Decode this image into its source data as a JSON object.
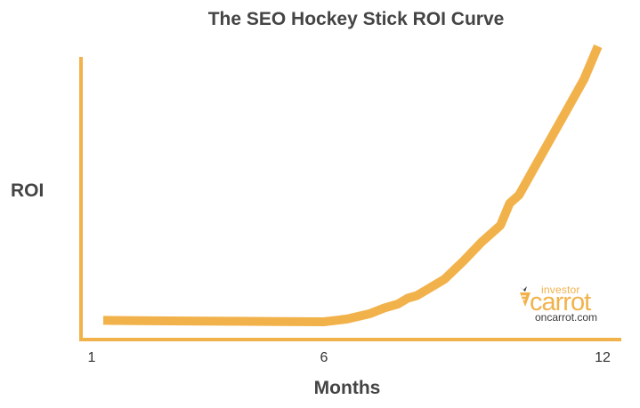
{
  "chart_data": {
    "type": "line",
    "title": "The SEO Hockey Stick ROI Curve",
    "xlabel": "Months",
    "ylabel": "ROI",
    "x_tick_labels": [
      "1",
      "6",
      "12"
    ],
    "xlim": [
      1,
      12
    ],
    "ylim": [
      0,
      100
    ],
    "grid": false,
    "line_color": "#f2b24b",
    "axis_color": "#f2b24b",
    "series": [
      {
        "x": [
          1.25,
          2,
          3,
          4,
          5,
          6,
          6.5,
          7,
          7.3,
          7.6,
          7.8,
          8,
          8.3,
          8.6,
          9,
          9.4,
          9.8,
          10,
          10.2,
          10.5,
          10.8,
          11.2,
          11.6,
          11.9
        ],
        "y": [
          0.5,
          0.4,
          0.3,
          0.2,
          0.1,
          0,
          1,
          3,
          5,
          6.5,
          8.5,
          9.5,
          12.5,
          15.5,
          22,
          29,
          35,
          43,
          46,
          55,
          64,
          76,
          88,
          100
        ]
      }
    ]
  },
  "watermark": {
    "top": "investor",
    "brand": "carrot",
    "url": "oncarrot.com"
  }
}
